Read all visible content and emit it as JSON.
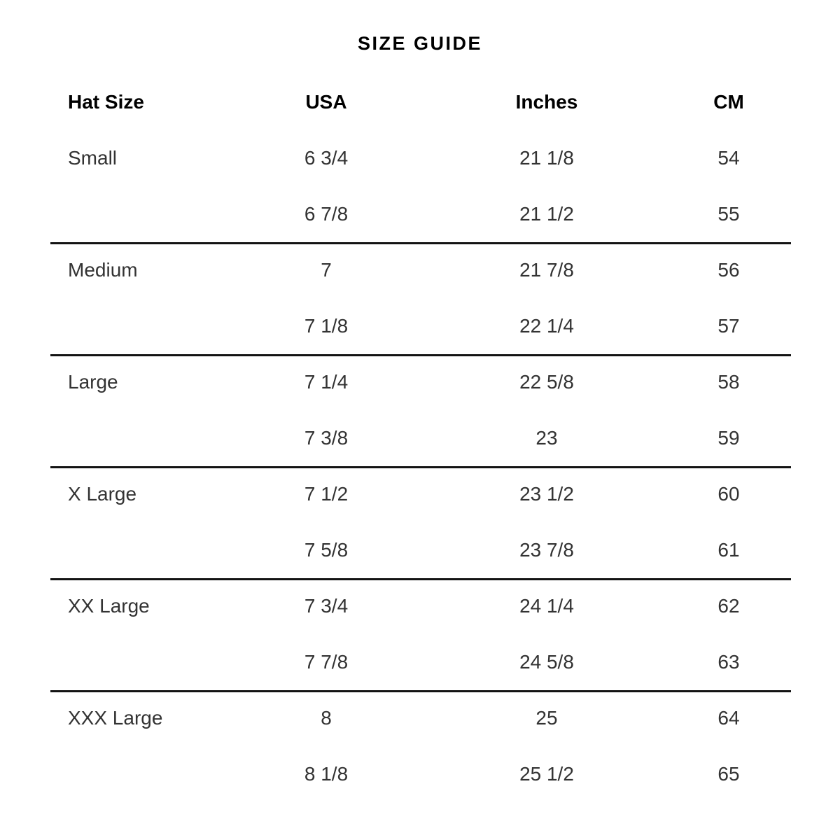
{
  "title": "SIZE GUIDE",
  "table": {
    "columns": [
      "Hat Size",
      "USA",
      "Inches",
      "CM"
    ],
    "groups": [
      {
        "name": "Small",
        "rows": [
          [
            "6 3/4",
            "21 1/8",
            "54"
          ],
          [
            "6 7/8",
            "21 1/2",
            "55"
          ]
        ]
      },
      {
        "name": "Medium",
        "rows": [
          [
            "7",
            "21 7/8",
            "56"
          ],
          [
            "7 1/8",
            "22 1/4",
            "57"
          ]
        ]
      },
      {
        "name": "Large",
        "rows": [
          [
            "7 1/4",
            "22 5/8",
            "58"
          ],
          [
            "7 3/8",
            "23",
            "59"
          ]
        ]
      },
      {
        "name": "X Large",
        "rows": [
          [
            "7 1/2",
            "23 1/2",
            "60"
          ],
          [
            "7 5/8",
            "23 7/8",
            "61"
          ]
        ]
      },
      {
        "name": "XX Large",
        "rows": [
          [
            "7 3/4",
            "24 1/4",
            "62"
          ],
          [
            "7 7/8",
            "24 5/8",
            "63"
          ]
        ]
      },
      {
        "name": "XXX Large",
        "rows": [
          [
            "8",
            "25",
            "64"
          ],
          [
            "8 1/8",
            "25 1/2",
            "65"
          ]
        ]
      }
    ]
  },
  "colors": {
    "background": "#ffffff",
    "heading_text": "#000000",
    "body_text": "#333333",
    "divider": "#131313"
  }
}
